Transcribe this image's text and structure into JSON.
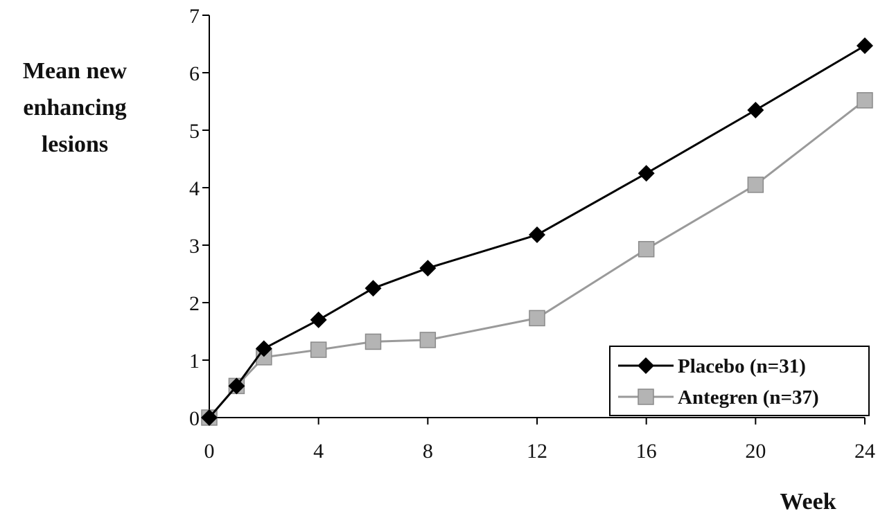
{
  "chart_data": {
    "type": "line",
    "title": "",
    "ylabel_lines": [
      "Mean new",
      "enhancing",
      "lesions"
    ],
    "xlabel": "Week",
    "x": [
      0,
      1,
      2,
      4,
      6,
      8,
      12,
      16,
      20,
      24
    ],
    "xticks": [
      0,
      4,
      8,
      12,
      16,
      20,
      24
    ],
    "yticks": [
      0,
      1,
      2,
      3,
      4,
      5,
      6,
      7
    ],
    "xlim": [
      0,
      24
    ],
    "ylim": [
      0,
      7
    ],
    "grid": false,
    "legend_position": "bottom-right",
    "series": [
      {
        "name": "Placebo (n=31)",
        "color": "#000000",
        "marker": "diamond",
        "values": [
          0,
          0.55,
          1.2,
          1.7,
          2.25,
          2.6,
          3.18,
          4.25,
          5.35,
          6.47
        ]
      },
      {
        "name": "Antegren (n=37)",
        "color": "#9a9a9a",
        "marker": "square",
        "values": [
          0,
          0.55,
          1.05,
          1.18,
          1.32,
          1.35,
          1.73,
          2.93,
          4.05,
          5.52
        ]
      }
    ]
  }
}
